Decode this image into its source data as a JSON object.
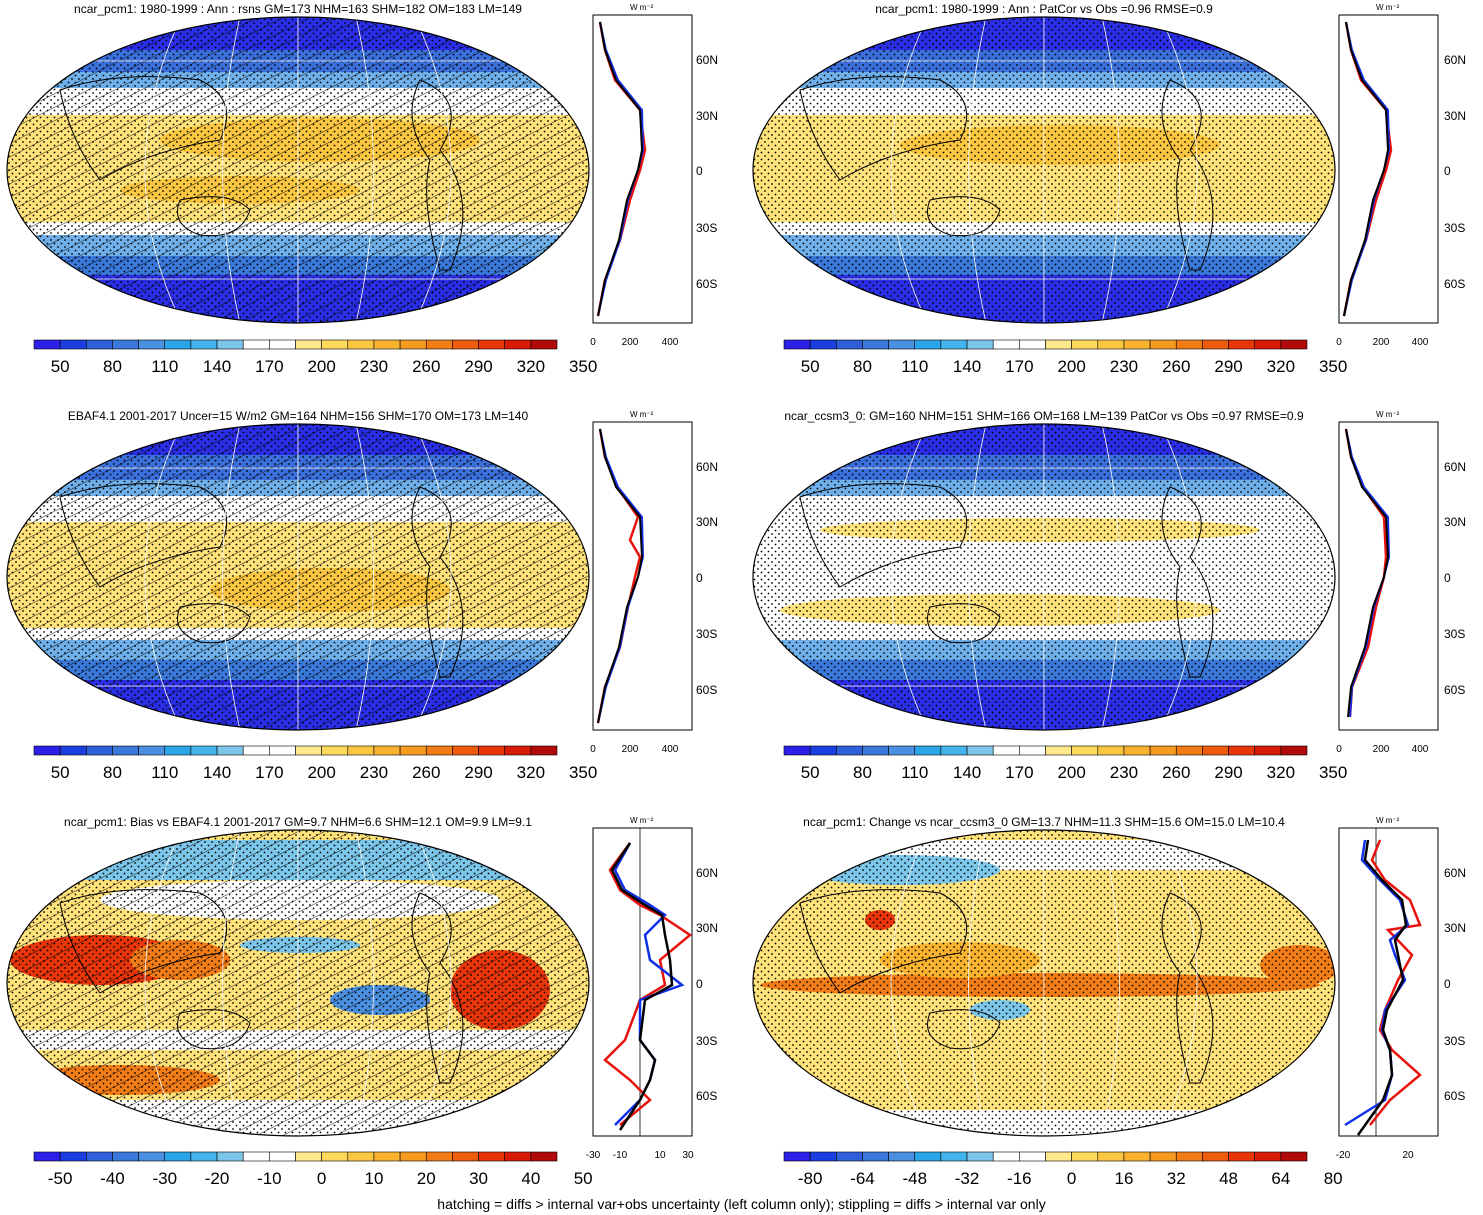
{
  "footnote": "hatching = diffs > internal var+obs uncertainty (left column only); stippling = diffs > internal var only",
  "profile_unit": "W m⁻²",
  "lat_labels": [
    "60N",
    "30N",
    "0",
    "30S",
    "60S"
  ],
  "colors": {
    "abs_palette": [
      "#2b1fe8",
      "#1a3ee0",
      "#2f5fd9",
      "#3a78da",
      "#4a8fe0",
      "#2aa6e8",
      "#44b4ec",
      "#7cc6ea",
      "#ffffff",
      "#ffffff",
      "#ffe98c",
      "#ffd95a",
      "#fcc740",
      "#fab32e",
      "#f69a20",
      "#f27d16",
      "#ee5c0e",
      "#e8350a",
      "#d81a08",
      "#b00a0a"
    ],
    "diff_palette": [
      "#2b1fe8",
      "#1a3ee0",
      "#2f5fd9",
      "#3a78da",
      "#4a8fe0",
      "#2aa6e8",
      "#44b4ec",
      "#7cc6ea",
      "#ffffff",
      "#ffffff",
      "#ffe98c",
      "#ffd95a",
      "#fcc740",
      "#fab32e",
      "#f69a20",
      "#f27d16",
      "#ee5c0e",
      "#e8350a",
      "#d81a08",
      "#b00a0a"
    ],
    "model_line": "#e8120c",
    "obs_line": "#1030e8",
    "mean_line": "#000000"
  },
  "panels": [
    {
      "id": "top-left",
      "title": "ncar_pcm1: 1980-1999 : Ann : rsns GM=173 NHM=163 SHM=182 OM=183 LM=149",
      "colorbar_labels": [
        "50",
        "80",
        "110",
        "140",
        "170",
        "200",
        "230",
        "260",
        "290",
        "320",
        "350"
      ],
      "profile_ticks": [
        "0",
        "200",
        "400"
      ],
      "palette": "abs",
      "hatched": true
    },
    {
      "id": "top-right",
      "title": "ncar_pcm1: 1980-1999 : Ann : PatCor vs Obs =0.96 RMSE=0.9",
      "colorbar_labels": [
        "50",
        "80",
        "110",
        "140",
        "170",
        "200",
        "230",
        "260",
        "290",
        "320",
        "350"
      ],
      "profile_ticks": [
        "0",
        "200",
        "400"
      ],
      "palette": "abs",
      "hatched": false
    },
    {
      "id": "middle-left",
      "title": "EBAF4.1 2001-2017 Uncer=15 W/m2 GM=164 NHM=156 SHM=170 OM=173 LM=140",
      "colorbar_labels": [
        "50",
        "80",
        "110",
        "140",
        "170",
        "200",
        "230",
        "260",
        "290",
        "320",
        "350"
      ],
      "profile_ticks": [
        "0",
        "200",
        "400"
      ],
      "palette": "abs",
      "hatched": true
    },
    {
      "id": "middle-right",
      "title": "ncar_ccsm3_0: GM=160 NHM=151 SHM=166 OM=168 LM=139 PatCor vs Obs =0.97 RMSE=0.9",
      "colorbar_labels": [
        "50",
        "80",
        "110",
        "140",
        "170",
        "200",
        "230",
        "260",
        "290",
        "320",
        "350"
      ],
      "profile_ticks": [
        "0",
        "200",
        "400"
      ],
      "palette": "abs",
      "hatched": false
    },
    {
      "id": "bottom-left",
      "title": "ncar_pcm1: Bias vs EBAF4.1 2001-2017 GM=9.7 NHM=6.6 SHM=12.1 OM=9.9 LM=9.1",
      "colorbar_labels": [
        "-50",
        "-40",
        "-30",
        "-20",
        "-10",
        "0",
        "10",
        "20",
        "30",
        "40",
        "50"
      ],
      "profile_ticks": [
        "-30",
        "-10",
        "10",
        "30"
      ],
      "palette": "diff",
      "hatched": true
    },
    {
      "id": "bottom-right",
      "title": "ncar_pcm1: Change vs ncar_ccsm3_0 GM=13.7 NHM=11.3 SHM=15.6 OM=15.0 LM=10.4",
      "colorbar_labels": [
        "-80",
        "-64",
        "-48",
        "-32",
        "-16",
        "0",
        "16",
        "32",
        "48",
        "64",
        "80"
      ],
      "profile_ticks": [
        "-20",
        "20"
      ],
      "palette": "diff",
      "hatched": false
    }
  ]
}
